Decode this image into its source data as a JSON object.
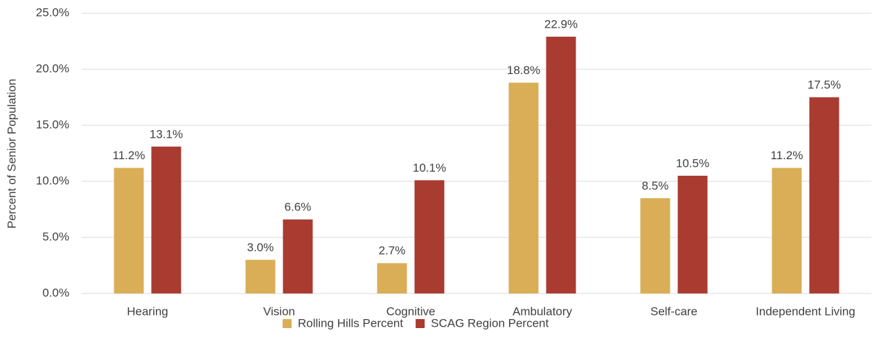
{
  "chart_data": {
    "type": "bar",
    "y_label": "Percent of Senior Population",
    "categories": [
      "Hearing",
      "Vision",
      "Cognitive",
      "Ambulatory",
      "Self-care",
      "Independent Living"
    ],
    "series": [
      {
        "name": "Rolling Hills Percent",
        "color": "#d9ae57",
        "values": [
          11.2,
          3.0,
          2.7,
          18.8,
          8.5,
          11.2
        ],
        "value_labels": [
          "11.2%",
          "3.0%",
          "2.7%",
          "18.8%",
          "8.5%",
          "11.2%"
        ]
      },
      {
        "name": "SCAG Region Percent",
        "color": "#a93b30",
        "values": [
          13.1,
          6.6,
          10.1,
          22.9,
          10.5,
          17.5
        ],
        "value_labels": [
          "13.1%",
          "6.6%",
          "10.1%",
          "22.9%",
          "10.5%",
          "17.5%"
        ]
      }
    ],
    "ylim": [
      0,
      25
    ],
    "yticks": [
      {
        "value": 0,
        "label": "0.0%"
      },
      {
        "value": 5,
        "label": "5.0%"
      },
      {
        "value": 10,
        "label": "10.0%"
      },
      {
        "value": 15,
        "label": "15.0%"
      },
      {
        "value": 20,
        "label": "20.0%"
      },
      {
        "value": 25,
        "label": "25.0%"
      }
    ],
    "grid": true,
    "legend": "bottom"
  }
}
